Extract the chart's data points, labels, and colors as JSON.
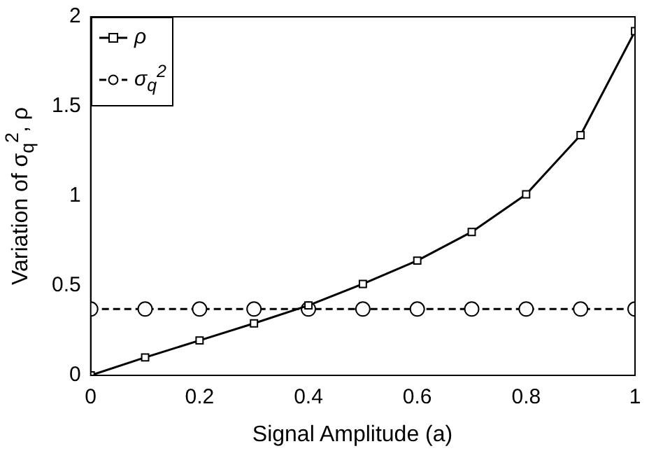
{
  "chart_data": {
    "type": "line",
    "xlabel": "Signal Amplitude (a)",
    "ylabel": "Variation of σ$_{q}$$^{2}$, ρ",
    "x": [
      0,
      0.1,
      0.2,
      0.3,
      0.4,
      0.5,
      0.6,
      0.7,
      0.8,
      0.9,
      1
    ],
    "xlim": [
      0,
      1
    ],
    "xticks": [
      0,
      0.2,
      0.4,
      0.6,
      0.8,
      1
    ],
    "ylim": [
      0,
      2
    ],
    "yticks": [
      0,
      0.5,
      1,
      1.5,
      2
    ],
    "grid": false,
    "legend": "top left",
    "series": [
      {
        "name": "ρ",
        "color": "#000000",
        "marker": "square",
        "line_style": "solid",
        "values": [
          0,
          0.1,
          0.195,
          0.29,
          0.39,
          0.51,
          0.64,
          0.8,
          1.01,
          1.34,
          1.92
        ]
      },
      {
        "name": "σ$_{q}$$^{2}$",
        "color": "#000000",
        "marker": "circle",
        "line_style": "dashed",
        "values": [
          0.37,
          0.37,
          0.37,
          0.37,
          0.37,
          0.37,
          0.37,
          0.37,
          0.37,
          0.37,
          0.37
        ]
      }
    ]
  }
}
